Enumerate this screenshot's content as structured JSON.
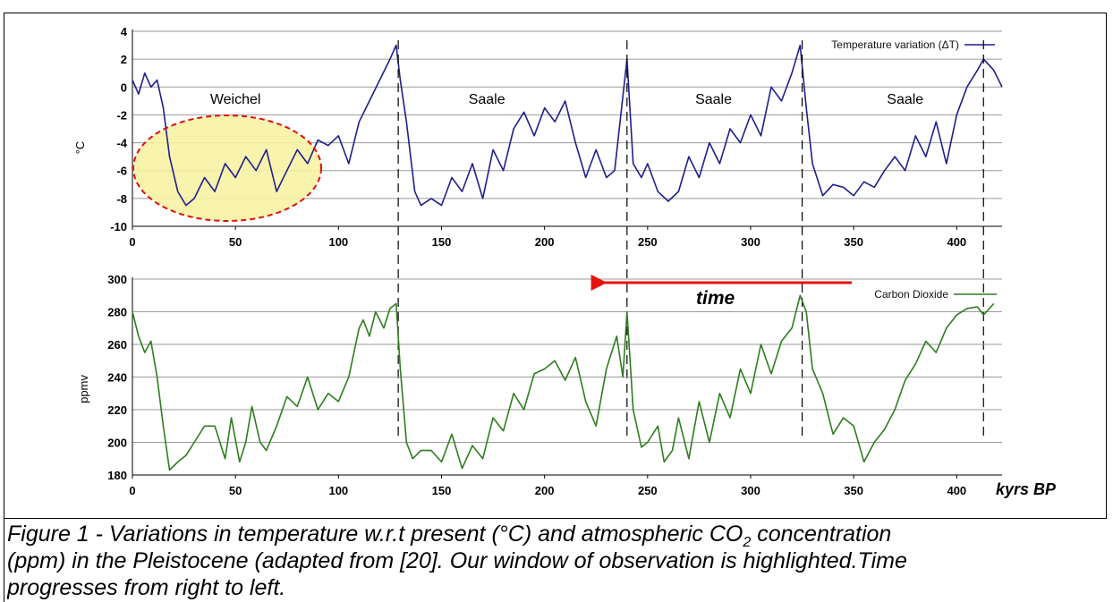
{
  "chart_data": [
    {
      "type": "line",
      "ylabel": "°C",
      "xlim": [
        0,
        422
      ],
      "ylim": [
        -10,
        4
      ],
      "x_ticks": [
        "0",
        "50",
        "100",
        "150",
        "200",
        "250",
        "300",
        "350",
        "400"
      ],
      "y_ticks": [
        "4",
        "2",
        "0",
        "-2",
        "-4",
        "-6",
        "-8",
        "-10"
      ],
      "grid": true,
      "legend": "top-right",
      "period_labels": [
        "Weichel",
        "Saale",
        "Saale",
        "Saale"
      ],
      "series": [
        {
          "name": "Temperature variation (ΔT)",
          "color": "#1f1f8c",
          "x": [
            0,
            3,
            6,
            9,
            12,
            15,
            18,
            22,
            26,
            30,
            35,
            40,
            45,
            50,
            55,
            60,
            65,
            70,
            75,
            80,
            85,
            90,
            95,
            100,
            105,
            110,
            115,
            120,
            125,
            128,
            130,
            133,
            137,
            140,
            145,
            150,
            155,
            160,
            165,
            170,
            175,
            180,
            185,
            190,
            195,
            200,
            205,
            210,
            215,
            220,
            225,
            230,
            234,
            237,
            240,
            243,
            247,
            250,
            255,
            260,
            265,
            270,
            275,
            280,
            285,
            290,
            295,
            300,
            305,
            310,
            315,
            320,
            324,
            327,
            330,
            335,
            340,
            345,
            350,
            355,
            360,
            365,
            370,
            375,
            380,
            385,
            390,
            395,
            400,
            405,
            410,
            413,
            418,
            422
          ],
          "values": [
            0.5,
            -0.5,
            1,
            0,
            0.5,
            -1.5,
            -5,
            -7.5,
            -8.5,
            -8,
            -6.5,
            -7.5,
            -5.5,
            -6.5,
            -5,
            -6,
            -4.5,
            -7.5,
            -6,
            -4.5,
            -5.5,
            -3.8,
            -4.2,
            -3.5,
            -5.5,
            -2.5,
            -1,
            0.5,
            2,
            3,
            0.5,
            -2.5,
            -7.5,
            -8.5,
            -8,
            -8.5,
            -6.5,
            -7.5,
            -5.5,
            -8,
            -4.5,
            -6,
            -3,
            -1.8,
            -3.5,
            -1.5,
            -2.5,
            -1,
            -4,
            -6.5,
            -4.5,
            -6.5,
            -6,
            -2,
            2,
            -5.5,
            -6.5,
            -5.5,
            -7.5,
            -8.2,
            -7.5,
            -5,
            -6.5,
            -4,
            -5.5,
            -3,
            -4,
            -2,
            -3.5,
            0,
            -1,
            1,
            3,
            -1.5,
            -5.5,
            -7.8,
            -7,
            -7.2,
            -7.8,
            -6.8,
            -7.2,
            -6,
            -5,
            -6,
            -3.5,
            -5,
            -2.5,
            -5.5,
            -2,
            0,
            1.2,
            2,
            1.2,
            0
          ]
        }
      ]
    },
    {
      "type": "line",
      "xlabel": "kyrs BP",
      "ylabel": "ppmv",
      "xlim": [
        0,
        422
      ],
      "ylim": [
        180,
        300
      ],
      "x_ticks": [
        "0",
        "50",
        "100",
        "150",
        "200",
        "250",
        "300",
        "350",
        "400"
      ],
      "y_ticks": [
        "300",
        "280",
        "260",
        "240",
        "220",
        "200",
        "180"
      ],
      "grid": true,
      "legend": "top-right",
      "annotation": "time",
      "series": [
        {
          "name": "Carbon Dioxide",
          "color": "#2e7d1e",
          "x": [
            0,
            3,
            6,
            9,
            12,
            15,
            18,
            22,
            26,
            30,
            35,
            40,
            45,
            48,
            52,
            55,
            58,
            62,
            65,
            70,
            75,
            80,
            85,
            90,
            95,
            100,
            105,
            110,
            112,
            115,
            118,
            122,
            125,
            128,
            130,
            133,
            136,
            140,
            145,
            150,
            155,
            160,
            165,
            170,
            175,
            180,
            185,
            190,
            195,
            200,
            205,
            210,
            215,
            220,
            225,
            230,
            235,
            238,
            240,
            243,
            247,
            250,
            255,
            258,
            262,
            265,
            270,
            275,
            280,
            285,
            290,
            295,
            300,
            305,
            310,
            315,
            320,
            324,
            327,
            330,
            335,
            340,
            345,
            350,
            355,
            360,
            365,
            370,
            375,
            380,
            385,
            390,
            395,
            400,
            405,
            410,
            413,
            418
          ],
          "values": [
            280,
            265,
            255,
            262,
            240,
            210,
            183,
            188,
            192,
            200,
            210,
            210,
            190,
            215,
            188,
            200,
            222,
            200,
            195,
            210,
            228,
            222,
            240,
            220,
            230,
            225,
            240,
            270,
            275,
            265,
            280,
            270,
            282,
            285,
            245,
            200,
            190,
            195,
            195,
            188,
            205,
            184,
            198,
            190,
            215,
            207,
            230,
            220,
            242,
            245,
            250,
            238,
            252,
            225,
            210,
            245,
            265,
            240,
            280,
            220,
            197,
            200,
            210,
            188,
            195,
            215,
            190,
            225,
            200,
            230,
            215,
            245,
            230,
            260,
            242,
            262,
            270,
            290,
            280,
            245,
            230,
            205,
            215,
            210,
            188,
            200,
            208,
            220,
            238,
            248,
            262,
            255,
            270,
            278,
            282,
            283,
            278,
            285
          ]
        }
      ]
    }
  ],
  "caption": {
    "line1": "Figure 1 - Variations in temperature w.r.t present (°C) and atmospheric CO",
    "co2_subscript": "2",
    "line1_end": " concentration",
    "line2": "(ppm) in the Pleistocene (adapted from [20]. Our window of observation is highlighted.Time",
    "line3": "progresses from right to left."
  }
}
